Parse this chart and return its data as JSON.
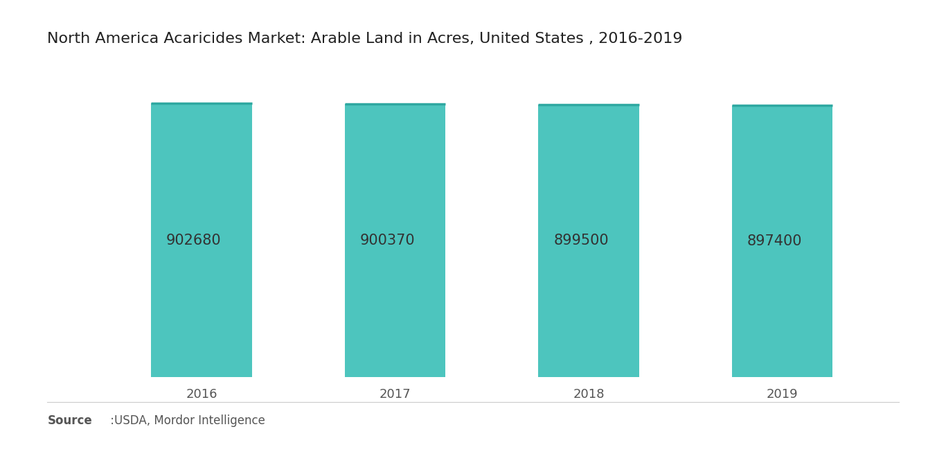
{
  "title": "North America Acaricides Market: Arable Land in Acres, United States , 2016-2019",
  "categories": [
    "2016",
    "2017",
    "2018",
    "2019"
  ],
  "values": [
    902680,
    900370,
    899500,
    897400
  ],
  "bar_color": "#4DC5BE",
  "bar_top_color": "#2FA8A1",
  "label_color": "#333333",
  "label_fontsize": 15,
  "title_fontsize": 16,
  "xlabel_fontsize": 13,
  "background_color": "#ffffff",
  "source_bold": "Source",
  "source_regular": " :USDA, Mordor Intelligence",
  "ylim_min": 0,
  "ylim_max": 1050000,
  "bar_width": 0.52
}
